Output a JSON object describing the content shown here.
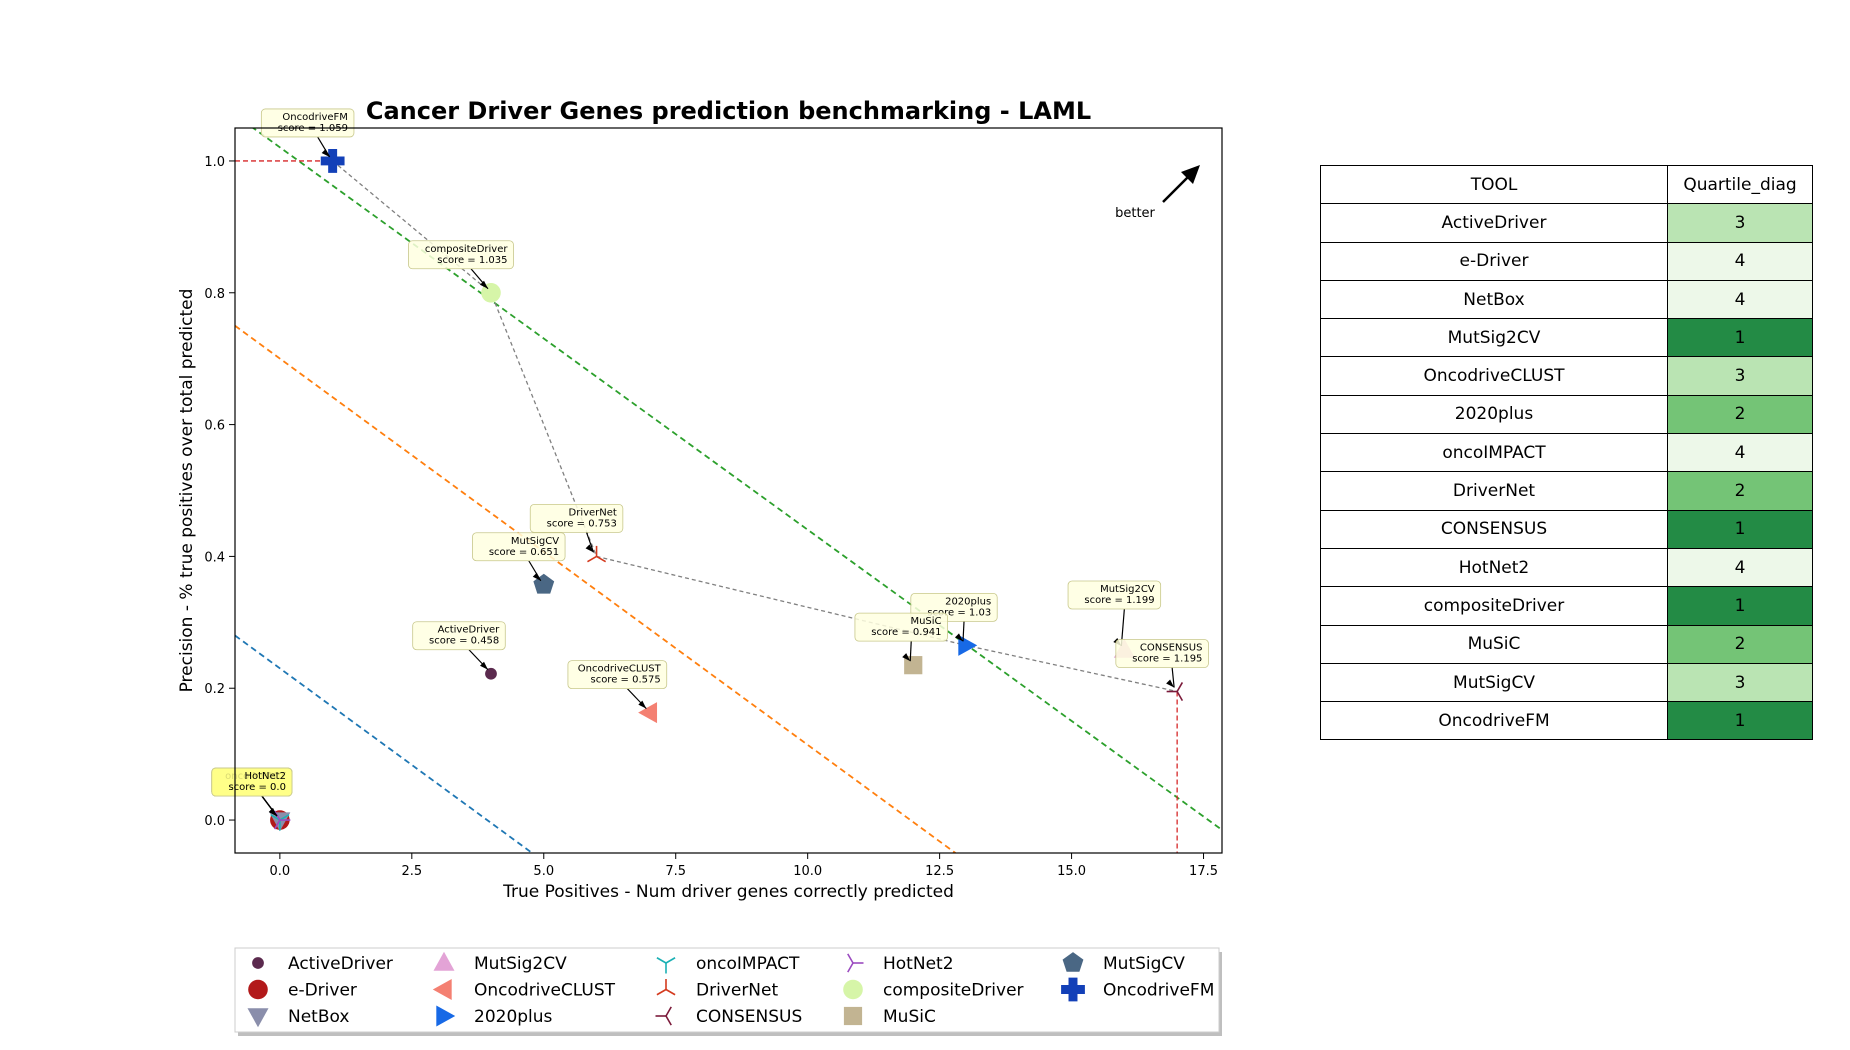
{
  "chart_data": {
    "type": "scatter",
    "title": "Cancer Driver Genes prediction benchmarking - LAML",
    "xlabel": "True Positives - Num driver genes correctly predicted",
    "ylabel": "Precision - % true positives over total predicted",
    "xlim": [
      -0.85,
      17.85
    ],
    "ylim": [
      -0.05,
      1.05
    ],
    "xticks": [
      0.0,
      2.5,
      5.0,
      7.5,
      10.0,
      12.5,
      15.0,
      17.5
    ],
    "xtick_labels": [
      "0.0",
      "2.5",
      "5.0",
      "7.5",
      "10.0",
      "12.5",
      "15.0",
      "17.5"
    ],
    "yticks": [
      0.0,
      0.2,
      0.4,
      0.6,
      0.8,
      1.0
    ],
    "ytick_labels": [
      "0.0",
      "0.2",
      "0.4",
      "0.6",
      "0.8",
      "1.0"
    ],
    "better_label": "better",
    "grid": false,
    "legend_position": "bottom",
    "tools": [
      {
        "name": "ActiveDriver",
        "x": 4,
        "y": 0.222,
        "marker": "circle-small",
        "color": "#5b2a4e",
        "score_label": "ActiveDriver\nscore = 0.458"
      },
      {
        "name": "e-Driver",
        "x": 0,
        "y": 0.0,
        "marker": "circle",
        "color": "#b2191a",
        "score_label": "e-Driver\nscore = 0.0"
      },
      {
        "name": "NetBox",
        "x": 0,
        "y": 0.0,
        "marker": "triangle-down",
        "color": "#8a8eab",
        "score_label": "NetBox\nscore = 0.0"
      },
      {
        "name": "MutSig2CV",
        "x": 16,
        "y": 0.258,
        "marker": "triangle-up",
        "color": "#e3a3d6",
        "score_label": "MutSig2CV\nscore = 1.199"
      },
      {
        "name": "OncodriveCLUST",
        "x": 7,
        "y": 0.163,
        "marker": "triangle-left",
        "color": "#f48072",
        "score_label": "OncodriveCLUST\nscore = 0.575"
      },
      {
        "name": "2020plus",
        "x": 13,
        "y": 0.265,
        "marker": "triangle-right",
        "color": "#1769e6",
        "score_label": "2020plus\nscore = 1.03"
      },
      {
        "name": "oncoIMPACT",
        "x": 0,
        "y": 0.0,
        "marker": "tri-down",
        "color": "#1bb0b4",
        "score_label": "oncoIMPACT\nscore = 0.0"
      },
      {
        "name": "DriverNet",
        "x": 6,
        "y": 0.4,
        "marker": "tri-up",
        "color": "#d43a1e",
        "score_label": "DriverNet\nscore = 0.753"
      },
      {
        "name": "CONSENSUS",
        "x": 17,
        "y": 0.195,
        "marker": "tri-left",
        "color": "#7b1a3a",
        "score_label": "CONSENSUS\nscore = 1.195"
      },
      {
        "name": "HotNet2",
        "x": 0,
        "y": 0.0,
        "marker": "tri-right",
        "color": "#9b4bc0",
        "score_label": "HotNet2\nscore = 0.0"
      },
      {
        "name": "compositeDriver",
        "x": 4,
        "y": 0.8,
        "marker": "circle",
        "color": "#d6f5a8",
        "score_label": "compositeDriver\nscore = 1.035"
      },
      {
        "name": "MuSiC",
        "x": 12,
        "y": 0.235,
        "marker": "square",
        "color": "#c2b492",
        "score_label": "MuSiC\nscore = 0.941"
      },
      {
        "name": "MutSigCV",
        "x": 5,
        "y": 0.357,
        "marker": "pentagon",
        "color": "#4a6784",
        "score_label": "MutSigCV\nscore = 0.651"
      },
      {
        "name": "OncodriveFM",
        "x": 1,
        "y": 1.0,
        "marker": "plus",
        "color": "#1340b8",
        "score_label": "OncodriveFM\nscore = 1.059"
      }
    ],
    "pareto_front": [
      [
        1,
        1.0
      ],
      [
        4,
        0.8
      ],
      [
        6,
        0.4
      ],
      [
        13,
        0.265
      ],
      [
        17,
        0.195
      ]
    ],
    "diagonal_lines": [
      {
        "color": "#1f77b4",
        "x0": -0.85,
        "y0": 0.28,
        "x1": 4.78,
        "y1": -0.05
      },
      {
        "color": "#ff7f0e",
        "x0": -0.85,
        "y0": 0.75,
        "x1": 12.8,
        "y1": -0.05
      },
      {
        "color": "#2ca02c",
        "x0": -0.85,
        "y0": 1.07,
        "x1": 17.85,
        "y1": -0.015
      }
    ],
    "quartile_table": {
      "headers": [
        "TOOL",
        "Quartile_diag"
      ],
      "rows": [
        {
          "tool": "ActiveDriver",
          "q": "3",
          "color": "#bae4b3"
        },
        {
          "tool": "e-Driver",
          "q": "4",
          "color": "#edf8e9"
        },
        {
          "tool": "NetBox",
          "q": "4",
          "color": "#edf8e9"
        },
        {
          "tool": "MutSig2CV",
          "q": "1",
          "color": "#238b45"
        },
        {
          "tool": "OncodriveCLUST",
          "q": "3",
          "color": "#bae4b3"
        },
        {
          "tool": "2020plus",
          "q": "2",
          "color": "#74c476"
        },
        {
          "tool": "oncoIMPACT",
          "q": "4",
          "color": "#edf8e9"
        },
        {
          "tool": "DriverNet",
          "q": "2",
          "color": "#74c476"
        },
        {
          "tool": "CONSENSUS",
          "q": "1",
          "color": "#238b45"
        },
        {
          "tool": "HotNet2",
          "q": "4",
          "color": "#edf8e9"
        },
        {
          "tool": "compositeDriver",
          "q": "1",
          "color": "#238b45"
        },
        {
          "tool": "MuSiC",
          "q": "2",
          "color": "#74c476"
        },
        {
          "tool": "MutSigCV",
          "q": "3",
          "color": "#bae4b3"
        },
        {
          "tool": "OncodriveFM",
          "q": "1",
          "color": "#238b45"
        }
      ]
    }
  }
}
